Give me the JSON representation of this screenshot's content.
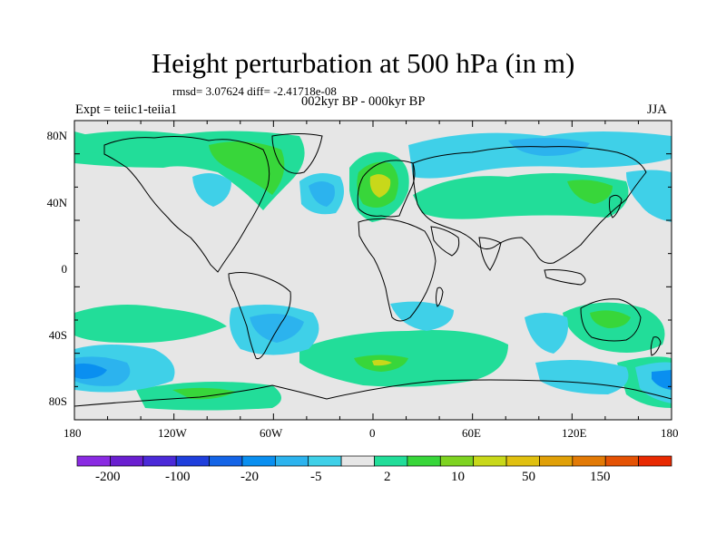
{
  "title": "Height perturbation at 500 hPa (in m)",
  "stats": "rmsd= 3.07624 diff= -2.41718e-08",
  "period": "002kyr BP - 000kyr BP",
  "experiment": "Expt = teiic1-teiia1",
  "season": "JJA",
  "lat_ticks": [
    "80N",
    "40N",
    "0",
    "40S",
    "80S"
  ],
  "lon_ticks": [
    "180",
    "120W",
    "60W",
    "0",
    "60E",
    "120E",
    "180"
  ],
  "colorbar": {
    "colors": [
      "#8a2be2",
      "#6a1fd0",
      "#4b2ad8",
      "#1f3fdc",
      "#1464e6",
      "#0a8ff0",
      "#2cb3ee",
      "#3fd0e8",
      "#e6e6e6",
      "#22dd99",
      "#38d63a",
      "#7ed321",
      "#c8d81a",
      "#e0c010",
      "#e0a008",
      "#e27a06",
      "#e45204",
      "#e82a02"
    ],
    "labels": [
      "-200",
      "-100",
      "-20",
      "-5",
      "2",
      "10",
      "50",
      "150"
    ]
  },
  "field_colors": {
    "neutral": "#e6e6e6",
    "pos1": "#22dd99",
    "pos2": "#38d63a",
    "pos3": "#7ed321",
    "pos4": "#c8d81a",
    "neg1": "#3fd0e8",
    "neg2": "#2cb3ee",
    "neg3": "#0a8ff0",
    "coast": "#000000"
  }
}
